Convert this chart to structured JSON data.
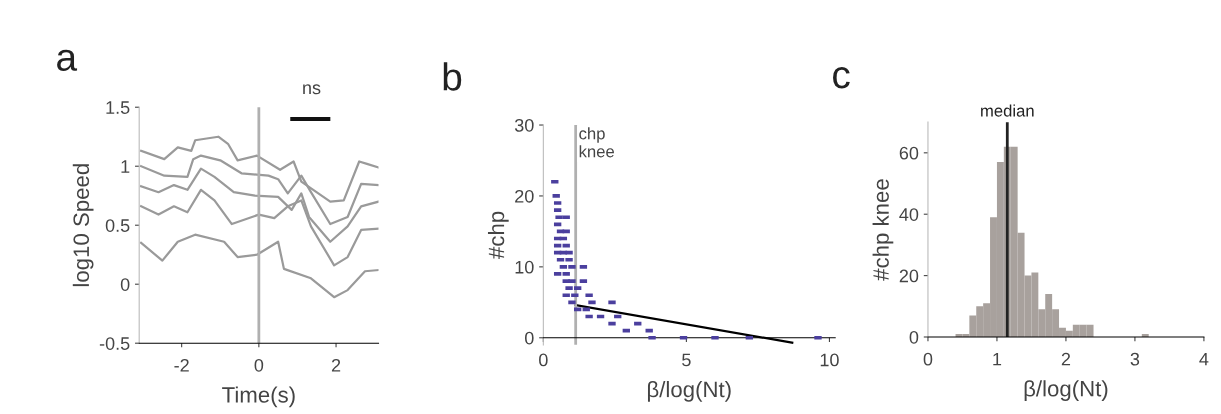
{
  "chart_data": [
    {
      "type": "line",
      "title": "a",
      "xlabel": "Time(s)",
      "ylabel": "log10 Speed",
      "xlim": [
        -3.1,
        3.1
      ],
      "xticks": [
        -2,
        0,
        2
      ],
      "ylim": [
        -0.5,
        1.5
      ],
      "yticks": [
        {
          "value": -0.5,
          "label": "-0.5"
        },
        0,
        0.5,
        1,
        1.5
      ],
      "annotations": [
        "ns"
      ],
      "ref_lines": [
        {
          "axis": "x",
          "value": 0,
          "color": "#b0b0b0"
        }
      ],
      "series": [
        {
          "color": "#9a9a9a",
          "x": [
            -3.05,
            -2.45,
            -2.1,
            -1.75,
            -1.65,
            -1.05,
            -0.8,
            -0.55,
            -0.05,
            0.55,
            0.9,
            1.1,
            1.85,
            2.2,
            2.6,
            2.8,
            3.1
          ],
          "values": [
            1.13,
            1.06,
            1.16,
            1.13,
            1.22,
            1.25,
            1.19,
            1.05,
            1.09,
            0.97,
            1.04,
            0.87,
            0.7,
            0.71,
            1.04,
            1.02,
            0.99
          ]
        },
        {
          "color": "#9a9a9a",
          "x": [
            -3.05,
            -2.45,
            -1.85,
            -1.7,
            -1.5,
            -1.0,
            -0.45,
            0.25,
            0.5,
            0.75,
            1.1,
            1.35,
            1.85,
            2.3,
            2.65,
            3.1
          ],
          "values": [
            1.0,
            0.92,
            0.91,
            1.06,
            1.09,
            1.05,
            0.94,
            0.92,
            0.89,
            0.77,
            0.92,
            0.78,
            0.51,
            0.57,
            0.85,
            0.84
          ]
        },
        {
          "color": "#9a9a9a",
          "x": [
            -3.05,
            -2.6,
            -2.2,
            -1.85,
            -1.5,
            -1.15,
            -0.65,
            -0.1,
            0.5,
            0.85,
            1.1,
            1.3,
            1.85,
            2.3,
            2.65,
            3.1
          ],
          "values": [
            0.83,
            0.78,
            0.84,
            0.8,
            0.98,
            0.91,
            0.78,
            0.75,
            0.74,
            0.63,
            0.77,
            0.57,
            0.36,
            0.49,
            0.66,
            0.7
          ]
        },
        {
          "color": "#9a9a9a",
          "x": [
            -3.05,
            -2.6,
            -2.2,
            -1.85,
            -1.5,
            -1.15,
            -0.7,
            0,
            0.4,
            0.75,
            1.1,
            1.35,
            1.95,
            2.3,
            2.65,
            3.1
          ],
          "values": [
            0.66,
            0.59,
            0.66,
            0.61,
            0.8,
            0.71,
            0.51,
            0.59,
            0.56,
            0.66,
            0.71,
            0.49,
            0.16,
            0.23,
            0.46,
            0.47
          ]
        },
        {
          "color": "#9a9a9a",
          "x": [
            -3.05,
            -2.5,
            -2.1,
            -1.65,
            -0.9,
            -0.55,
            -0.05,
            0.5,
            0.65,
            1.35,
            1.95,
            2.3,
            2.75,
            3.1
          ],
          "values": [
            0.35,
            0.2,
            0.36,
            0.42,
            0.36,
            0.23,
            0.25,
            0.36,
            0.13,
            0.05,
            -0.11,
            -0.05,
            0.11,
            0.12
          ]
        }
      ]
    },
    {
      "type": "scatter",
      "title": "b",
      "xlabel": "β/log(Nt)",
      "ylabel": "#chp",
      "xlim": [
        0,
        10.2
      ],
      "xticks": [
        0,
        5,
        10
      ],
      "ylim": [
        -1,
        30
      ],
      "yticks": [
        0,
        10,
        20,
        30
      ],
      "ref_lines": [
        {
          "axis": "x",
          "value": 1.13,
          "label": "chp\nknee",
          "color": "#b0b0b0"
        }
      ],
      "series": [
        {
          "color": "#4b3f9e",
          "x": [
            0.4,
            0.45,
            0.5,
            0.5,
            0.55,
            0.8,
            0.5,
            0.6,
            0.8,
            0.5,
            0.7,
            0.5,
            0.8,
            0.5,
            0.7,
            0.9,
            0.6,
            0.9,
            0.7,
            1.0,
            1.4,
            0.5,
            0.8,
            0.8,
            1.0,
            1.4,
            0.9,
            1.2,
            0.8,
            1.1,
            1.6,
            1.0,
            1.7,
            2.4,
            1.2,
            1.5,
            1.6,
            2.0,
            2.6,
            2.4,
            3.3,
            2.9,
            3.7,
            3.8,
            4.9,
            6.0,
            7.2,
            9.6
          ],
          "values": [
            22,
            20,
            19,
            18,
            17,
            17,
            16,
            15,
            15,
            14,
            14,
            13,
            13,
            12,
            12,
            12,
            11,
            11,
            10,
            10,
            10,
            9,
            9,
            8,
            8,
            8,
            7,
            7,
            6,
            6,
            6,
            5,
            5,
            5,
            4,
            4,
            3,
            3,
            3,
            2,
            2,
            1,
            1,
            0,
            0,
            0,
            0,
            0
          ]
        },
        {
          "type": "line",
          "color": "#000000",
          "x": [
            1.13,
            8.7
          ],
          "values": [
            4.6,
            -0.7
          ]
        }
      ]
    },
    {
      "type": "histogram",
      "title": "c",
      "xlabel": "β/log(Nt)",
      "ylabel": "#chp knee",
      "xlim": [
        0,
        4
      ],
      "xticks": [
        0,
        1,
        2,
        3,
        4
      ],
      "ylim": [
        0,
        70
      ],
      "yticks": [
        0,
        20,
        40,
        60
      ],
      "color": "#a8a19d",
      "bins": [
        0.4,
        0.5,
        0.6,
        0.7,
        0.8,
        0.9,
        1.0,
        1.1,
        1.2,
        1.3,
        1.4,
        1.5,
        1.6,
        1.7,
        1.8,
        1.9,
        2.0,
        2.1,
        2.2,
        2.3,
        2.4,
        2.5,
        2.6,
        2.7,
        2.8,
        2.9,
        3.0,
        3.1,
        3.2
      ],
      "values": [
        1,
        1,
        7,
        10,
        11,
        39,
        57,
        62,
        62,
        34,
        20,
        21,
        9,
        14,
        9,
        3,
        2,
        4,
        4,
        4,
        0,
        0,
        0,
        0,
        0,
        0,
        0,
        1
      ],
      "ref_lines": [
        {
          "axis": "x",
          "value": 1.15,
          "label": "median",
          "color": "#222222"
        }
      ]
    }
  ]
}
